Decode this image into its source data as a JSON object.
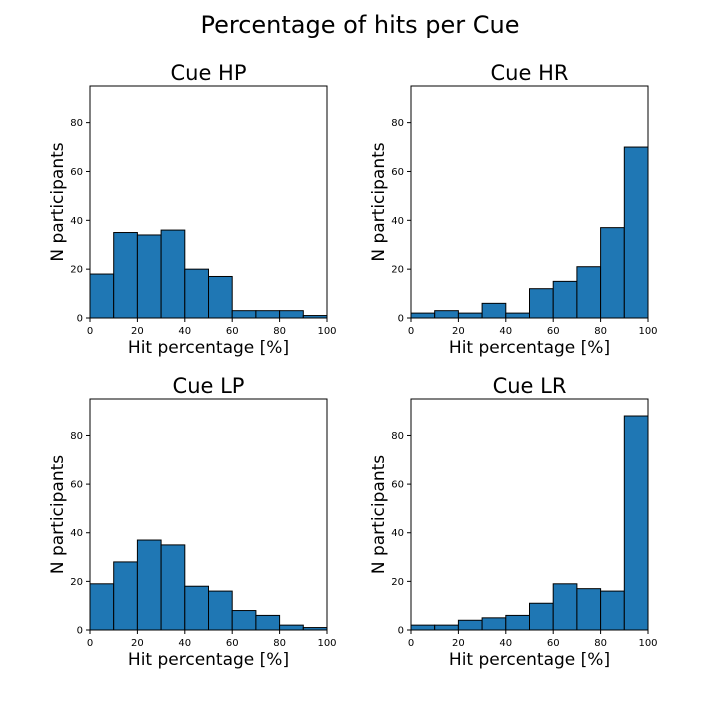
{
  "figure": {
    "title": "Percentage of hits per Cue",
    "bar_color": "#1f77b4",
    "edge_color": "#000000"
  },
  "chart_data": [
    {
      "type": "bar",
      "title": "Cue HP",
      "xlabel": "Hit percentage [%]",
      "ylabel": "N participants",
      "bin_edges": [
        0,
        10,
        20,
        30,
        40,
        50,
        60,
        70,
        80,
        90,
        100
      ],
      "values": [
        18,
        35,
        34,
        36,
        20,
        17,
        3,
        3,
        3,
        1
      ],
      "xlim": [
        0,
        100
      ],
      "ylim": [
        0,
        95
      ],
      "xticks": [
        0,
        20,
        40,
        60,
        80,
        100
      ],
      "yticks": [
        0,
        20,
        40,
        60,
        80
      ],
      "grid": false
    },
    {
      "type": "bar",
      "title": "Cue HR",
      "xlabel": "Hit percentage [%]",
      "ylabel": "N participants",
      "bin_edges": [
        0,
        10,
        20,
        30,
        40,
        50,
        60,
        70,
        80,
        90,
        100
      ],
      "values": [
        2,
        3,
        2,
        6,
        2,
        12,
        15,
        21,
        37,
        70
      ],
      "xlim": [
        0,
        100
      ],
      "ylim": [
        0,
        95
      ],
      "xticks": [
        0,
        20,
        40,
        60,
        80,
        100
      ],
      "yticks": [
        0,
        20,
        40,
        60,
        80
      ],
      "grid": false
    },
    {
      "type": "bar",
      "title": "Cue LP",
      "xlabel": "Hit percentage [%]",
      "ylabel": "N participants",
      "bin_edges": [
        0,
        10,
        20,
        30,
        40,
        50,
        60,
        70,
        80,
        90,
        100
      ],
      "values": [
        19,
        28,
        37,
        35,
        18,
        16,
        8,
        6,
        2,
        1
      ],
      "xlim": [
        0,
        100
      ],
      "ylim": [
        0,
        95
      ],
      "xticks": [
        0,
        20,
        40,
        60,
        80,
        100
      ],
      "yticks": [
        0,
        20,
        40,
        60,
        80
      ],
      "grid": false
    },
    {
      "type": "bar",
      "title": "Cue LR",
      "xlabel": "Hit percentage [%]",
      "ylabel": "N participants",
      "bin_edges": [
        0,
        10,
        20,
        30,
        40,
        50,
        60,
        70,
        80,
        90,
        100
      ],
      "values": [
        2,
        2,
        4,
        5,
        6,
        11,
        19,
        17,
        16,
        88
      ],
      "xlim": [
        0,
        100
      ],
      "ylim": [
        0,
        95
      ],
      "xticks": [
        0,
        20,
        40,
        60,
        80,
        100
      ],
      "yticks": [
        0,
        20,
        40,
        60,
        80
      ],
      "grid": false
    }
  ]
}
